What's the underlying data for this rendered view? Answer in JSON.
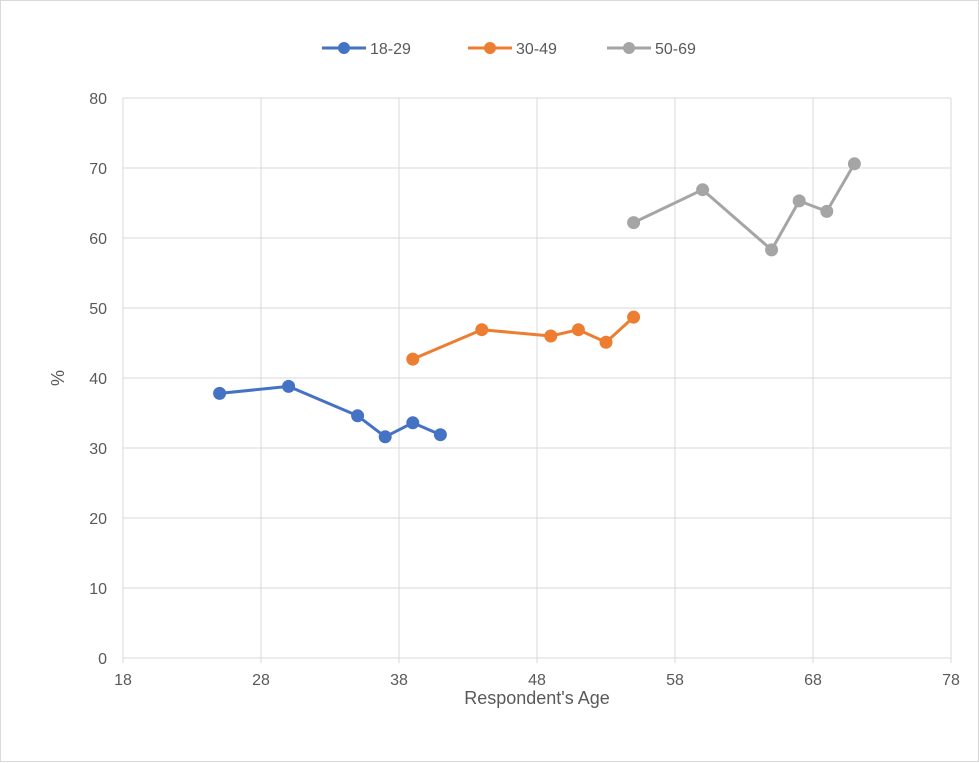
{
  "chart_data": {
    "type": "scatter",
    "title": "",
    "xlabel": "Respondent's Age",
    "ylabel": "%",
    "xlim": [
      18,
      78
    ],
    "ylim": [
      0,
      80
    ],
    "x_ticks": [
      18,
      28,
      38,
      48,
      58,
      68,
      78
    ],
    "y_ticks": [
      0,
      10,
      20,
      30,
      40,
      50,
      60,
      70,
      80
    ],
    "grid": true,
    "legend_position": "top",
    "series": [
      {
        "name": "18-29",
        "color": "#4472c4",
        "points": [
          [
            25,
            37.8
          ],
          [
            30,
            38.8
          ],
          [
            35,
            34.6
          ],
          [
            37,
            31.6
          ],
          [
            39,
            33.6
          ],
          [
            41,
            31.9
          ]
        ]
      },
      {
        "name": "30-49",
        "color": "#ed7d31",
        "points": [
          [
            39,
            42.7
          ],
          [
            44,
            46.9
          ],
          [
            49,
            46.0
          ],
          [
            51,
            46.9
          ],
          [
            53,
            45.1
          ],
          [
            55,
            48.7
          ]
        ]
      },
      {
        "name": "50-69",
        "color": "#a5a5a5",
        "points": [
          [
            55,
            62.2
          ],
          [
            60,
            66.9
          ],
          [
            65,
            58.3
          ],
          [
            67,
            65.3
          ],
          [
            69,
            63.8
          ],
          [
            71,
            70.6
          ]
        ]
      }
    ]
  }
}
